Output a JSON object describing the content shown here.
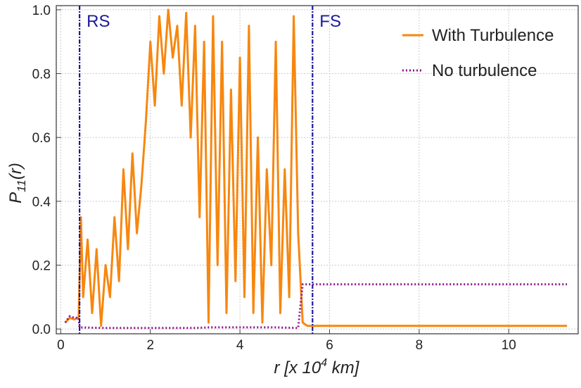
{
  "chart_data": {
    "type": "line",
    "y_label": {
      "main": "P",
      "sub": "11",
      "rest": "(r)"
    },
    "x_label": {
      "main": "r [x 10",
      "sup": "4",
      "rest": " km]"
    },
    "xlim": [
      -0.1,
      11.55
    ],
    "ylim": [
      -0.015,
      1.013
    ],
    "xticks": [
      0,
      2,
      4,
      6,
      8,
      10
    ],
    "yticks": [
      {
        "value": 0,
        "label": "0.0"
      },
      0.2,
      0.4,
      0.6,
      0.8,
      {
        "value": 1,
        "label": "1.0"
      }
    ],
    "grid": true,
    "legend": "top-right",
    "annotations": [
      {
        "text": "RS",
        "x": 0.42,
        "color": "#1a1a9a"
      },
      {
        "text": "FS",
        "x": 5.62,
        "color": "#1a1a9a"
      }
    ],
    "series": [
      {
        "name": "With Turbulence",
        "color": "#f7870f",
        "dash": "solid",
        "x": [
          0.1,
          0.2,
          0.3,
          0.4,
          0.45,
          0.5,
          0.6,
          0.7,
          0.8,
          0.9,
          1.0,
          1.1,
          1.2,
          1.3,
          1.4,
          1.5,
          1.6,
          1.7,
          1.8,
          1.9,
          2.0,
          2.1,
          2.2,
          2.3,
          2.4,
          2.5,
          2.6,
          2.7,
          2.8,
          2.9,
          3.0,
          3.1,
          3.2,
          3.3,
          3.4,
          3.5,
          3.6,
          3.7,
          3.8,
          3.9,
          4.0,
          4.1,
          4.2,
          4.3,
          4.4,
          4.5,
          4.6,
          4.7,
          4.8,
          4.9,
          5.0,
          5.1,
          5.2,
          5.3,
          5.4,
          5.5,
          6.0,
          8.0,
          11.3
        ],
        "values": [
          0.02,
          0.035,
          0.03,
          0.035,
          0.35,
          0.1,
          0.28,
          0.05,
          0.25,
          0.01,
          0.2,
          0.1,
          0.35,
          0.15,
          0.5,
          0.25,
          0.55,
          0.3,
          0.45,
          0.65,
          0.9,
          0.7,
          0.98,
          0.8,
          1.0,
          0.85,
          0.95,
          0.7,
          0.99,
          0.6,
          0.95,
          0.35,
          0.9,
          0.02,
          0.98,
          0.2,
          0.9,
          0.05,
          0.75,
          0.15,
          0.85,
          0.1,
          0.95,
          0.05,
          0.6,
          0.02,
          0.5,
          0.2,
          0.9,
          0.05,
          0.5,
          0.1,
          0.98,
          0.3,
          0.02,
          0.01,
          0.01,
          0.01,
          0.01
        ]
      },
      {
        "name": "No turbulence",
        "color": "#8b158b",
        "dash": "dotted",
        "x": [
          0.1,
          0.2,
          0.3,
          0.4,
          0.42,
          1.0,
          3.0,
          3.3,
          4.8,
          5.3,
          5.4,
          7.5,
          11.3
        ],
        "values": [
          0.02,
          0.04,
          0.035,
          0.035,
          0.005,
          0.003,
          0.003,
          0.005,
          0.005,
          0.003,
          0.14,
          0.14,
          0.14
        ]
      }
    ]
  }
}
